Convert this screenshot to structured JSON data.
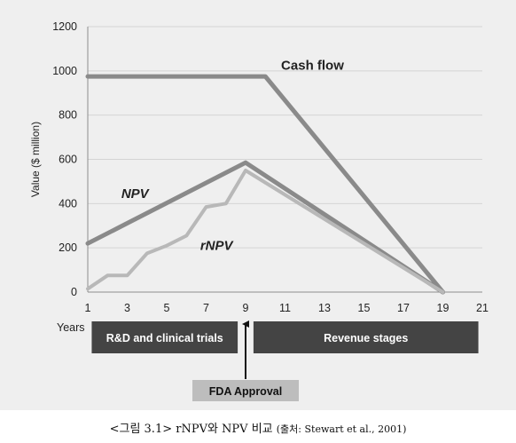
{
  "chart_data": {
    "type": "line",
    "ylabel": "Value ($ million)",
    "xlabel_prefix": "Years",
    "xlim": [
      1,
      21
    ],
    "ylim": [
      0,
      1200
    ],
    "x_ticks": [
      1,
      3,
      5,
      7,
      9,
      11,
      13,
      15,
      17,
      19,
      21
    ],
    "y_ticks": [
      0,
      200,
      400,
      600,
      800,
      1000,
      1200
    ],
    "grid": true,
    "series": [
      {
        "name": "Cash flow",
        "color": "#8a8a8a",
        "points": [
          [
            1,
            975
          ],
          [
            10,
            975
          ],
          [
            19,
            0
          ]
        ]
      },
      {
        "name": "NPV",
        "color": "#8a8a8a",
        "points": [
          [
            1,
            220
          ],
          [
            9,
            585
          ],
          [
            19,
            0
          ]
        ]
      },
      {
        "name": "rNPV",
        "color": "#b8b8b8",
        "points": [
          [
            1,
            15
          ],
          [
            2,
            75
          ],
          [
            3,
            75
          ],
          [
            4,
            175
          ],
          [
            5,
            210
          ],
          [
            6,
            255
          ],
          [
            7,
            385
          ],
          [
            8,
            400
          ],
          [
            9,
            550
          ],
          [
            19,
            0
          ]
        ]
      }
    ],
    "annotations": {
      "stages": [
        {
          "label": "R&D and clinical trials",
          "from": 1.2,
          "to": 8.6
        },
        {
          "label": "Revenue stages",
          "from": 9.4,
          "to": 20.8
        }
      ],
      "milestone": {
        "label": "FDA Approval",
        "x": 9
      }
    }
  },
  "caption": {
    "main": "<그림 3.1> rNPV와 NPV 비교",
    "source": "(출처: Stewart et al., 2001)"
  }
}
